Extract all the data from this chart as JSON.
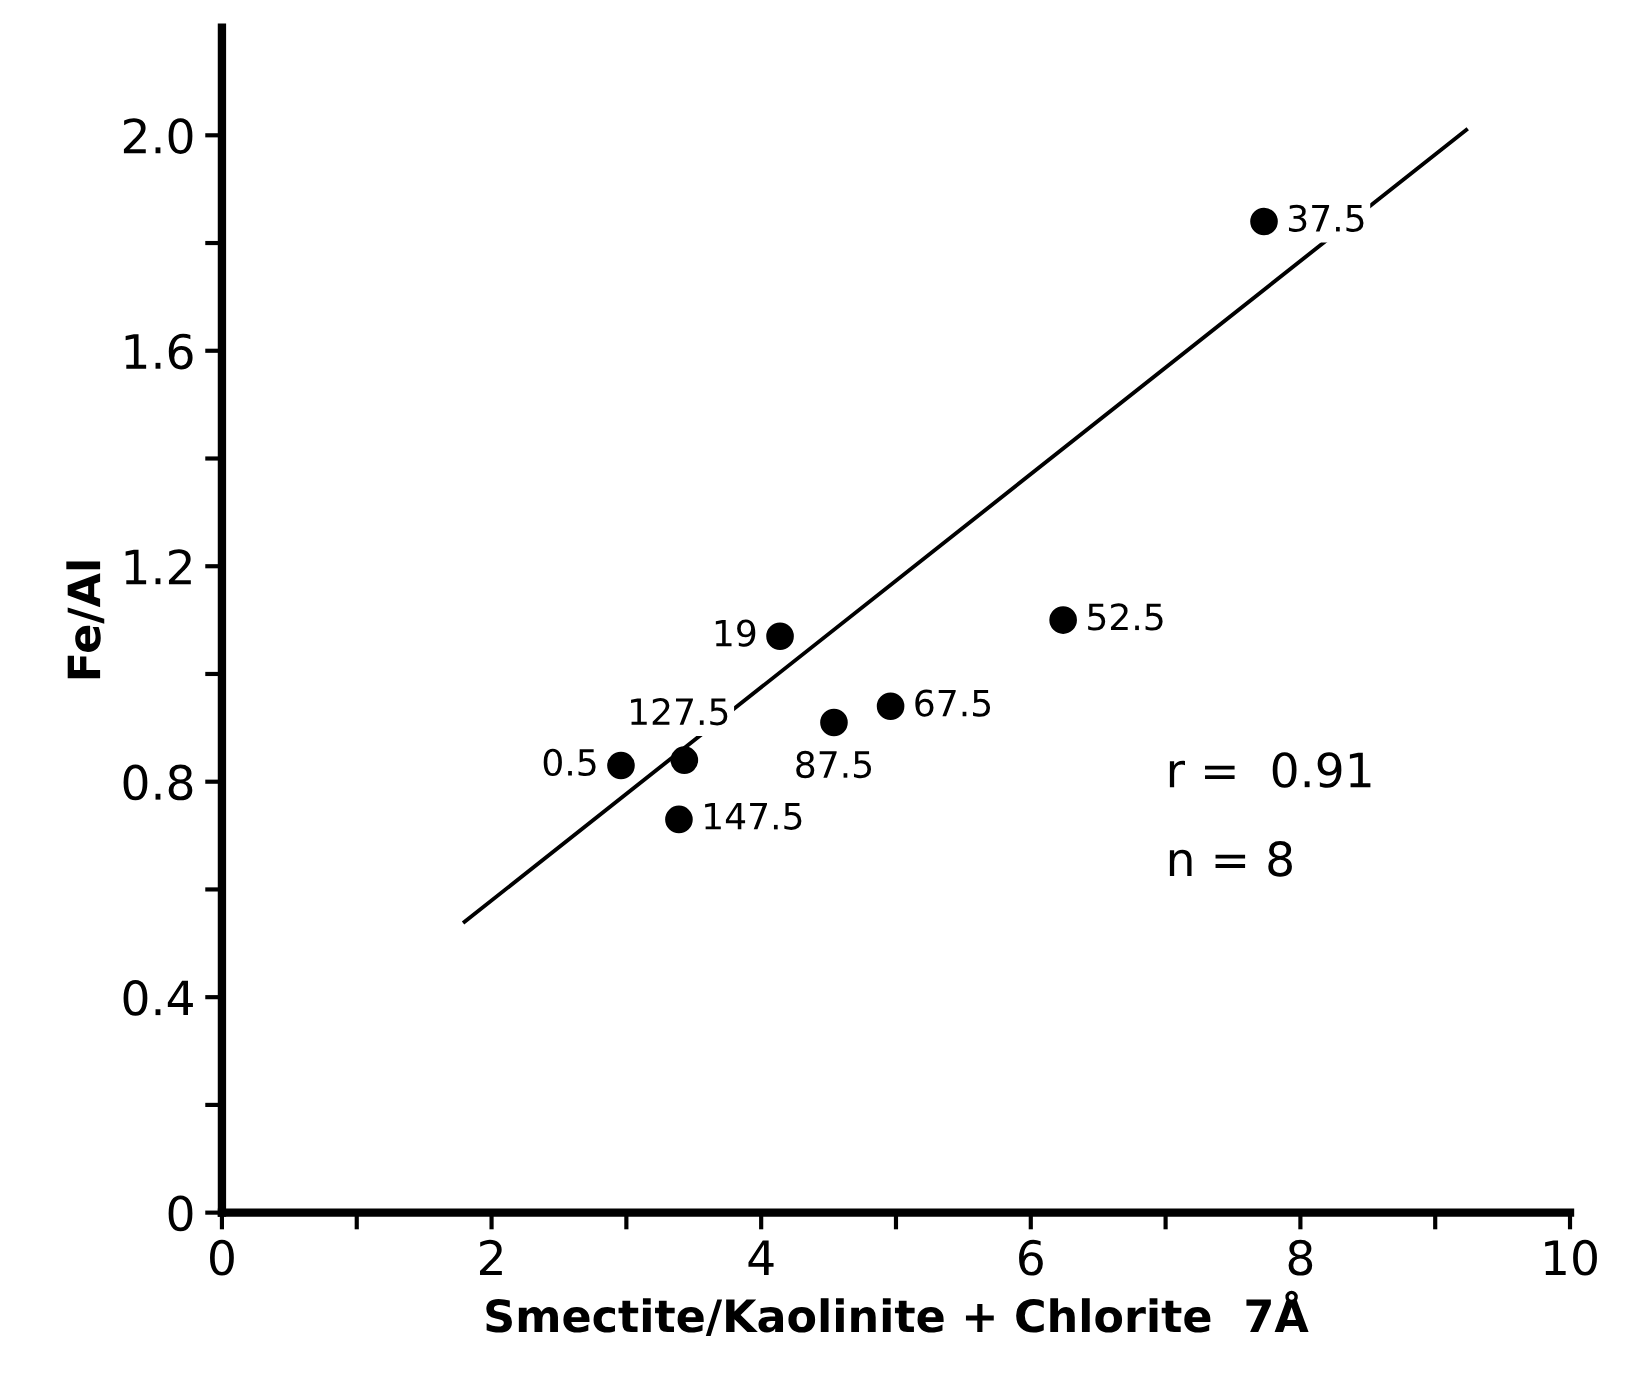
{
  "chart_data": {
    "type": "scatter",
    "xlabel": "Smectite/Kaolinite + Chlorite  7Å",
    "ylabel": "Fe/Al",
    "xlim": [
      0,
      10
    ],
    "ylim": [
      0,
      2.2
    ],
    "xticks": [
      0,
      {
        "value": 1,
        "label": null
      },
      2,
      {
        "value": 3,
        "label": null
      },
      4,
      {
        "value": 5,
        "label": null
      },
      6,
      {
        "value": 7,
        "label": null
      },
      8,
      {
        "value": 9,
        "label": null
      },
      10
    ],
    "yticks": [
      0,
      {
        "value": 0.2,
        "label": null
      },
      0.4,
      {
        "value": 0.6,
        "label": null
      },
      0.8,
      {
        "value": 1.0,
        "label": null
      },
      1.2,
      {
        "value": 1.4,
        "label": null
      },
      1.6,
      {
        "value": 1.8,
        "label": null
      },
      {
        "value": 2.0,
        "label": "2.0"
      }
    ],
    "grid": false,
    "legend": false,
    "series": [
      {
        "color": "#000000",
        "marker": "circle",
        "x": [
          7.73,
          6.24,
          4.96,
          4.54,
          4.14,
          3.43,
          2.96,
          3.39
        ],
        "values": [
          1.84,
          1.1,
          0.94,
          0.91,
          1.07,
          0.84,
          0.83,
          0.73
        ]
      },
      {
        "type": "line",
        "color": "#000000",
        "line_style": "solid",
        "marker": "none",
        "x": [
          1.8,
          9.23
        ],
        "values": [
          0.54,
          2.01
        ]
      }
    ],
    "annotations": [
      {
        "text": "37.5",
        "x": 7.73,
        "y": 1.84
      },
      {
        "text": "52.5",
        "x": 6.24,
        "y": 1.1
      },
      {
        "text": "67.5",
        "x": 4.96,
        "y": 0.94
      },
      {
        "text": "87.5",
        "x": 4.54,
        "y": 0.91
      },
      {
        "text": "19",
        "x": 4.14,
        "y": 1.07
      },
      {
        "text": "127.5",
        "x": 3.43,
        "y": 0.84
      },
      {
        "text": "0.5",
        "x": 2.96,
        "y": 0.83
      },
      {
        "text": "147.5",
        "x": 3.39,
        "y": 0.73
      },
      "r =  0.91",
      "n = 8"
    ]
  }
}
